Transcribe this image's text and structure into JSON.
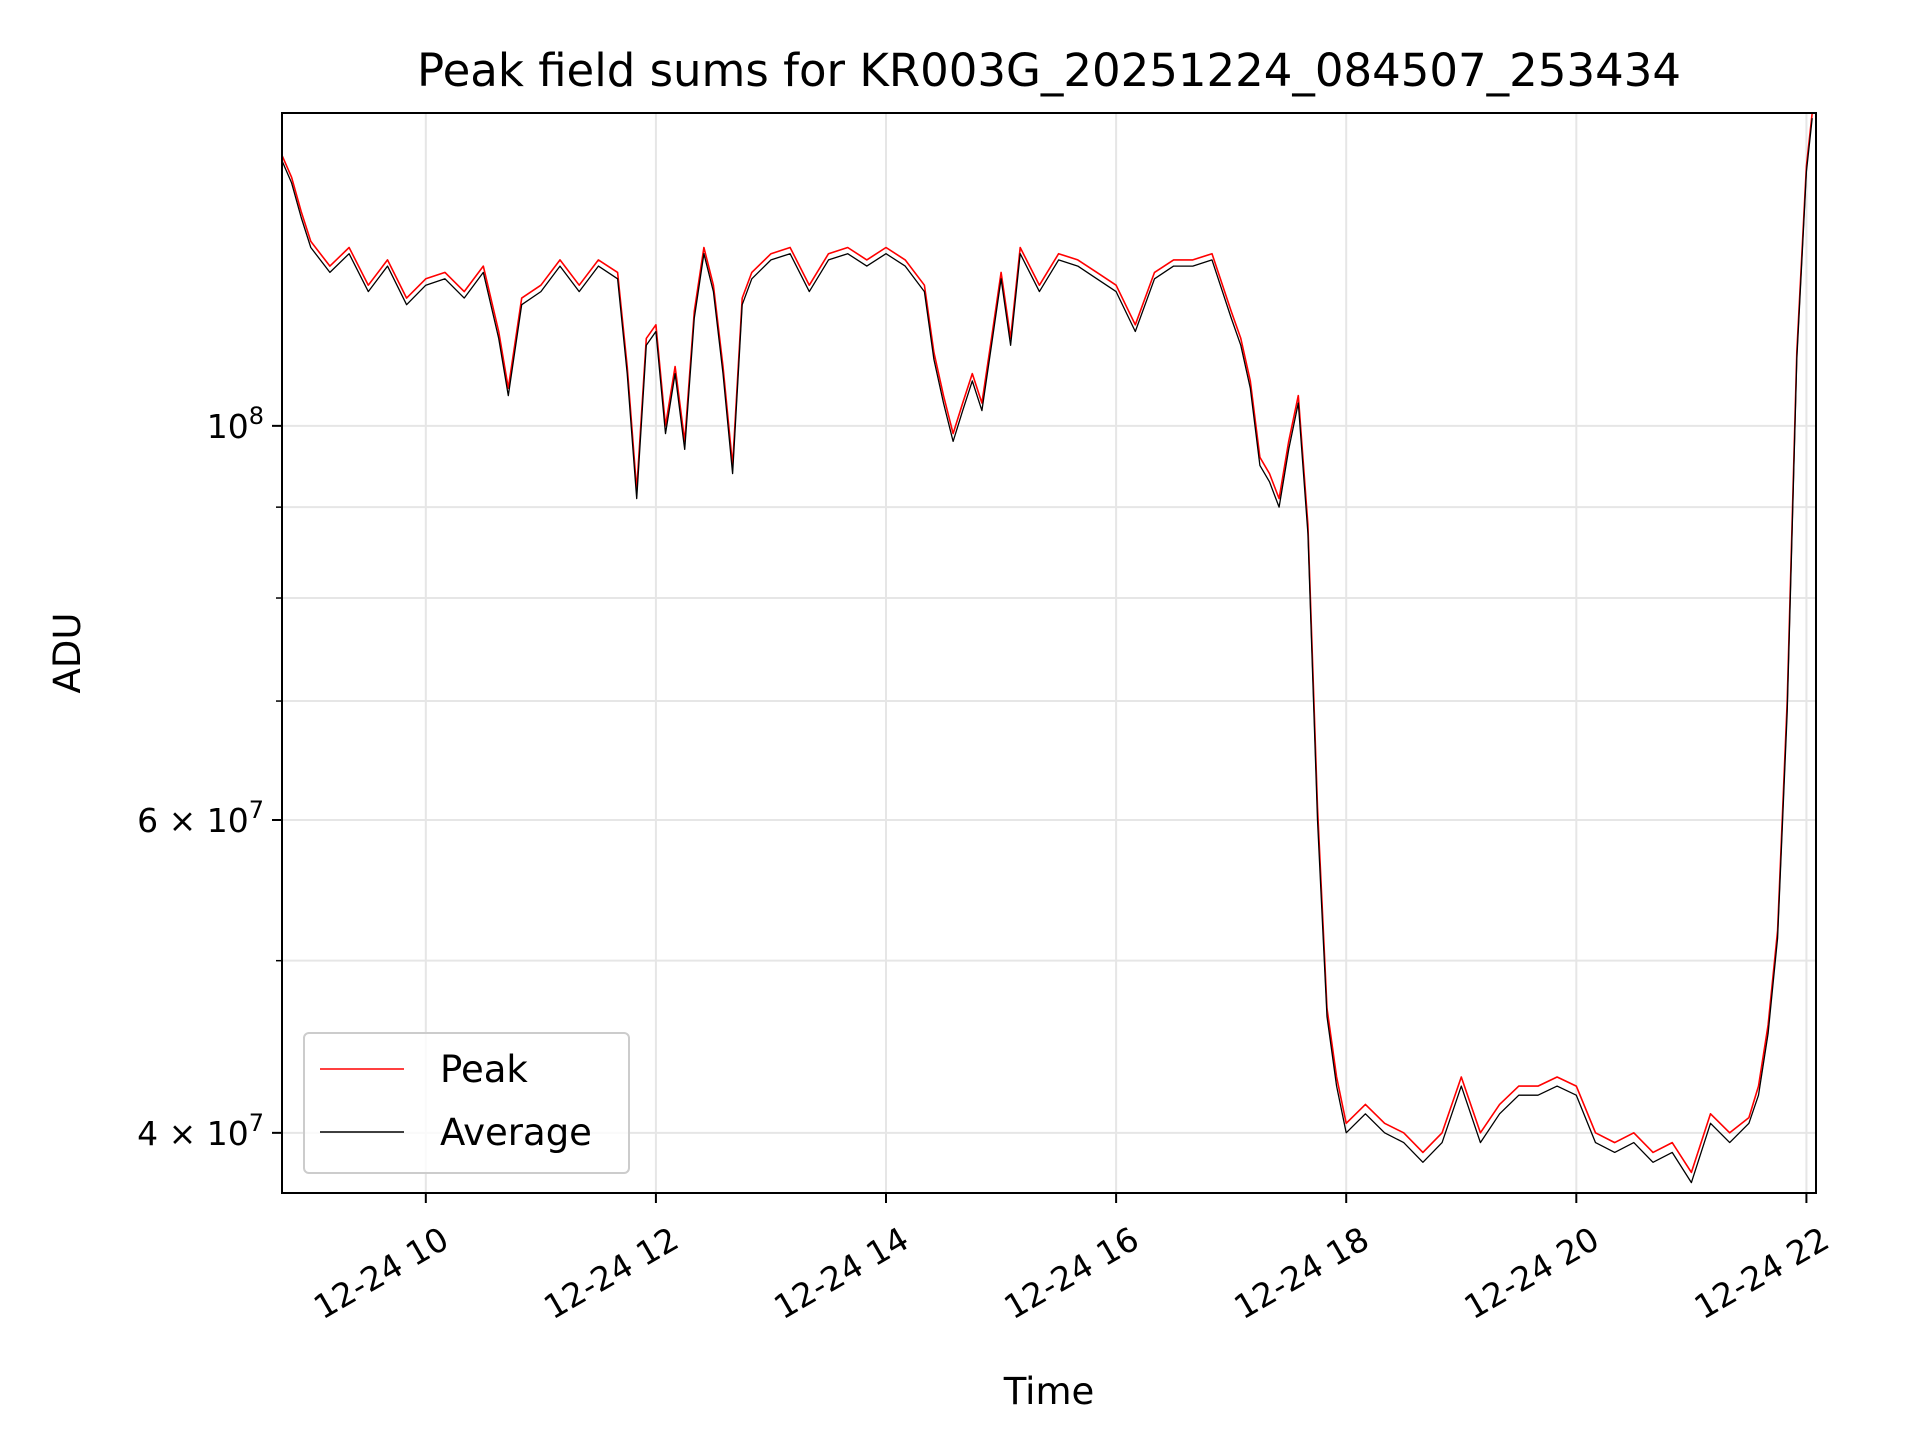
{
  "chart_data": {
    "type": "line",
    "title": "Peak field sums for KR003G_20251224_084507_253434",
    "xlabel": "Time",
    "ylabel": "ADU",
    "yscale": "log",
    "grid": true,
    "legend_position": "lower-left",
    "xlim": [
      "2025-12-24 08:45",
      "2025-12-24 22:05"
    ],
    "ylim": [
      37000000,
      150000000
    ],
    "x_ticks": [
      {
        "value": "2025-12-24 10:00",
        "label": "12-24 10"
      },
      {
        "value": "2025-12-24 12:00",
        "label": "12-24 12"
      },
      {
        "value": "2025-12-24 14:00",
        "label": "12-24 14"
      },
      {
        "value": "2025-12-24 16:00",
        "label": "12-24 16"
      },
      {
        "value": "2025-12-24 18:00",
        "label": "12-24 18"
      },
      {
        "value": "2025-12-24 20:00",
        "label": "12-24 20"
      },
      {
        "value": "2025-12-24 22:00",
        "label": "12-24 22"
      }
    ],
    "y_ticks_labeled": [
      {
        "value": 100000000,
        "base": "10",
        "exp": "8",
        "mantissa": ""
      },
      {
        "value": 60000000,
        "base": "10",
        "exp": "7",
        "mantissa": "6 × "
      },
      {
        "value": 40000000,
        "base": "10",
        "exp": "7",
        "mantissa": "4 × "
      }
    ],
    "y_minor_gridlines": [
      50000000,
      70000000,
      80000000,
      90000000
    ],
    "x": [
      "2025-12-24 08:45",
      "2025-12-24 08:50",
      "2025-12-24 08:55",
      "2025-12-24 09:00",
      "2025-12-24 09:10",
      "2025-12-24 09:20",
      "2025-12-24 09:30",
      "2025-12-24 09:40",
      "2025-12-24 09:50",
      "2025-12-24 10:00",
      "2025-12-24 10:10",
      "2025-12-24 10:20",
      "2025-12-24 10:30",
      "2025-12-24 10:38",
      "2025-12-24 10:43",
      "2025-12-24 10:50",
      "2025-12-24 11:00",
      "2025-12-24 11:10",
      "2025-12-24 11:20",
      "2025-12-24 11:30",
      "2025-12-24 11:40",
      "2025-12-24 11:45",
      "2025-12-24 11:50",
      "2025-12-24 11:55",
      "2025-12-24 12:00",
      "2025-12-24 12:05",
      "2025-12-24 12:10",
      "2025-12-24 12:15",
      "2025-12-24 12:20",
      "2025-12-24 12:25",
      "2025-12-24 12:30",
      "2025-12-24 12:35",
      "2025-12-24 12:40",
      "2025-12-24 12:45",
      "2025-12-24 12:50",
      "2025-12-24 13:00",
      "2025-12-24 13:10",
      "2025-12-24 13:20",
      "2025-12-24 13:30",
      "2025-12-24 13:40",
      "2025-12-24 13:50",
      "2025-12-24 14:00",
      "2025-12-24 14:10",
      "2025-12-24 14:20",
      "2025-12-24 14:25",
      "2025-12-24 14:30",
      "2025-12-24 14:35",
      "2025-12-24 14:40",
      "2025-12-24 14:45",
      "2025-12-24 14:50",
      "2025-12-24 14:55",
      "2025-12-24 15:00",
      "2025-12-24 15:05",
      "2025-12-24 15:10",
      "2025-12-24 15:20",
      "2025-12-24 15:30",
      "2025-12-24 15:40",
      "2025-12-24 15:50",
      "2025-12-24 16:00",
      "2025-12-24 16:10",
      "2025-12-24 16:20",
      "2025-12-24 16:30",
      "2025-12-24 16:40",
      "2025-12-24 16:50",
      "2025-12-24 17:00",
      "2025-12-24 17:05",
      "2025-12-24 17:10",
      "2025-12-24 17:15",
      "2025-12-24 17:20",
      "2025-12-24 17:25",
      "2025-12-24 17:30",
      "2025-12-24 17:35",
      "2025-12-24 17:40",
      "2025-12-24 17:45",
      "2025-12-24 17:50",
      "2025-12-24 17:55",
      "2025-12-24 18:00",
      "2025-12-24 18:10",
      "2025-12-24 18:20",
      "2025-12-24 18:30",
      "2025-12-24 18:40",
      "2025-12-24 18:50",
      "2025-12-24 19:00",
      "2025-12-24 19:10",
      "2025-12-24 19:20",
      "2025-12-24 19:30",
      "2025-12-24 19:40",
      "2025-12-24 19:50",
      "2025-12-24 20:00",
      "2025-12-24 20:10",
      "2025-12-24 20:20",
      "2025-12-24 20:30",
      "2025-12-24 20:40",
      "2025-12-24 20:50",
      "2025-12-24 21:00",
      "2025-12-24 21:10",
      "2025-12-24 21:20",
      "2025-12-24 21:30",
      "2025-12-24 21:35",
      "2025-12-24 21:40",
      "2025-12-24 21:45",
      "2025-12-24 21:50",
      "2025-12-24 21:55",
      "2025-12-24 22:00",
      "2025-12-24 22:03"
    ],
    "series": [
      {
        "name": "Peak",
        "color": "#ff0000",
        "values": [
          142000000,
          138000000,
          132000000,
          127000000,
          123000000,
          126000000,
          120000000,
          124000000,
          118000000,
          121000000,
          122000000,
          119000000,
          123000000,
          113000000,
          105000000,
          118000000,
          120000000,
          124000000,
          120000000,
          124000000,
          122000000,
          108000000,
          92000000,
          112000000,
          114000000,
          100000000,
          108000000,
          98000000,
          116000000,
          126000000,
          120000000,
          108000000,
          95000000,
          118000000,
          122000000,
          125000000,
          126000000,
          120000000,
          125000000,
          126000000,
          124000000,
          126000000,
          124000000,
          120000000,
          110000000,
          104000000,
          99000000,
          103000000,
          107000000,
          103000000,
          112000000,
          122000000,
          112000000,
          126000000,
          120000000,
          125000000,
          124000000,
          122000000,
          120000000,
          114000000,
          122000000,
          124000000,
          124000000,
          125000000,
          116000000,
          112000000,
          106000000,
          96000000,
          94000000,
          91000000,
          98000000,
          104000000,
          88000000,
          61000000,
          47000000,
          43000000,
          40500000,
          41500000,
          40500000,
          40000000,
          39000000,
          40000000,
          43000000,
          40000000,
          41500000,
          42500000,
          42500000,
          43000000,
          42500000,
          40000000,
          39500000,
          40000000,
          39000000,
          39500000,
          38000000,
          41000000,
          40000000,
          40800000,
          42500000,
          46000000,
          52000000,
          70000000,
          110000000,
          140000000,
          150000000
        ]
      },
      {
        "name": "Average",
        "color": "#000000",
        "values": [
          141000000,
          137000000,
          131000000,
          126000000,
          122000000,
          125000000,
          119000000,
          123000000,
          117000000,
          120000000,
          121000000,
          118000000,
          122000000,
          112000000,
          104000000,
          117000000,
          119000000,
          123000000,
          119000000,
          123000000,
          121000000,
          107000000,
          91000000,
          111000000,
          113000000,
          99000000,
          107000000,
          97000000,
          115000000,
          125000000,
          119000000,
          107000000,
          94000000,
          117000000,
          121000000,
          124000000,
          125000000,
          119000000,
          124000000,
          125000000,
          123000000,
          125000000,
          123000000,
          119000000,
          109000000,
          103000000,
          98000000,
          102000000,
          106000000,
          102000000,
          111000000,
          121000000,
          111000000,
          125000000,
          119000000,
          124000000,
          123000000,
          121000000,
          119000000,
          113000000,
          121000000,
          123000000,
          123000000,
          124000000,
          115000000,
          111000000,
          105000000,
          95000000,
          93000000,
          90000000,
          97000000,
          103000000,
          87000000,
          60000000,
          46500000,
          42500000,
          40000000,
          41000000,
          40000000,
          39500000,
          38500000,
          39500000,
          42500000,
          39500000,
          41000000,
          42000000,
          42000000,
          42500000,
          42000000,
          39500000,
          39000000,
          39500000,
          38500000,
          39000000,
          37500000,
          40500000,
          39500000,
          40500000,
          42000000,
          45500000,
          51500000,
          69000000,
          109000000,
          139000000,
          149000000
        ]
      }
    ]
  }
}
